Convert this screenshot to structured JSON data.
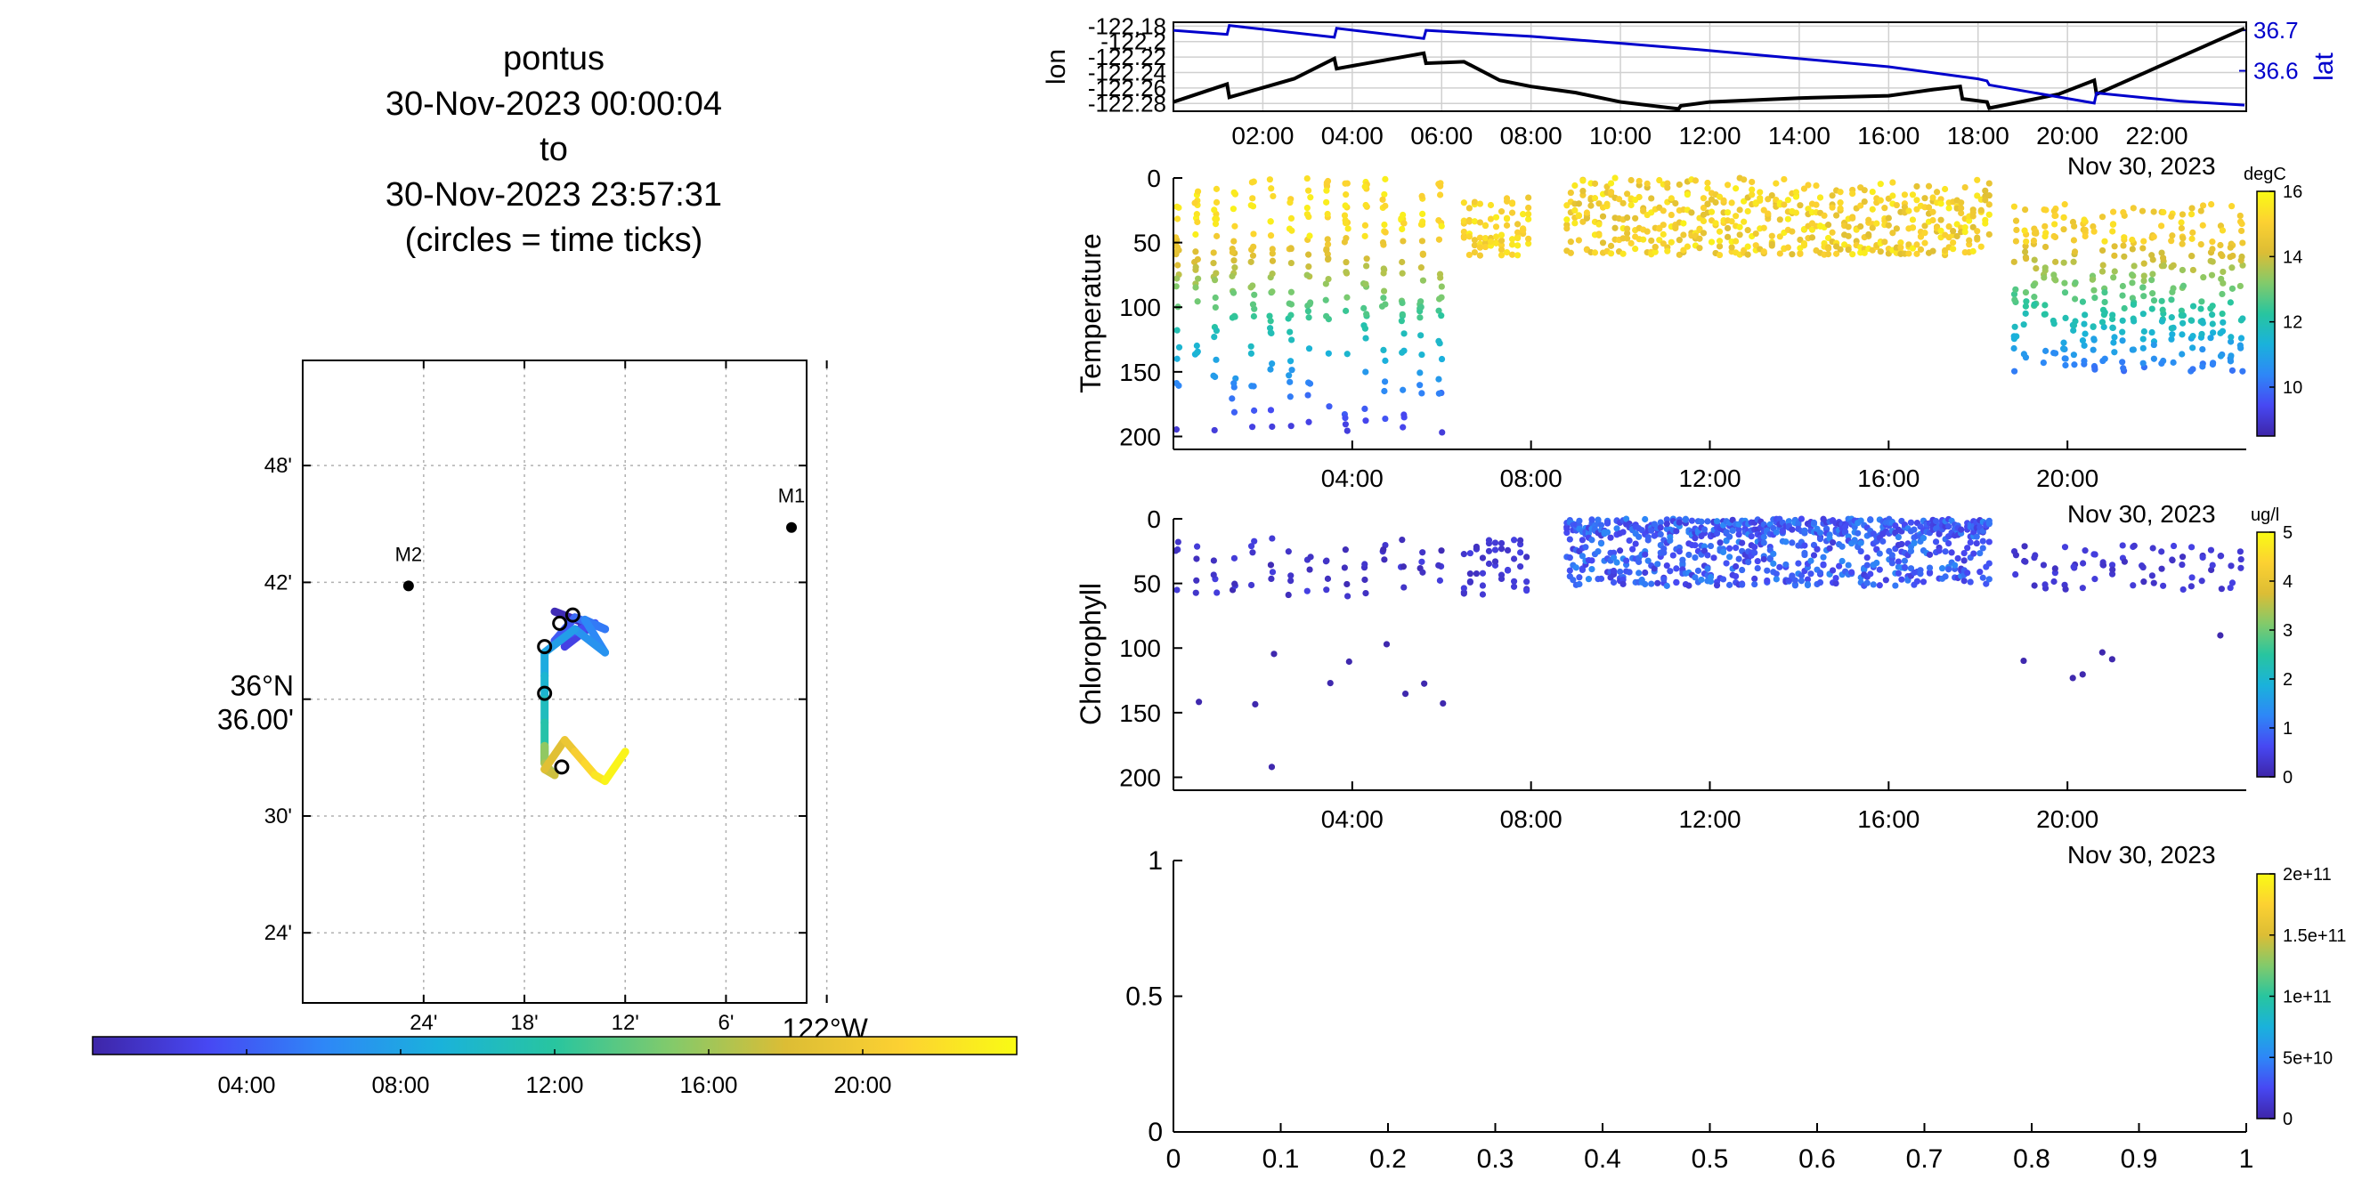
{
  "title": {
    "lines": [
      "pontus",
      "30-Nov-2023 00:00:04",
      "to",
      "30-Nov-2023 23:57:31",
      "(circles = time ticks)"
    ]
  },
  "map": {
    "lat_ticks": [
      "48'",
      "42'",
      "36°N 36.00'",
      "30'",
      "24'"
    ],
    "lat_tick_values": [
      36.8,
      36.7,
      36.6,
      36.5,
      36.4
    ],
    "lon_ticks": [
      "24'",
      "18'",
      "12'",
      "6'",
      "122°W"
    ],
    "lon_tick_values": [
      -122.4,
      -122.3,
      -122.2,
      -122.1,
      -122.0
    ],
    "lat_range": [
      36.34,
      36.89
    ],
    "lon_range": [
      -122.52,
      -122.02
    ],
    "stations": [
      {
        "label": "M1",
        "lon": -122.035,
        "lat": 36.747
      },
      {
        "label": "M2",
        "lon": -122.415,
        "lat": 36.697
      }
    ],
    "track": {
      "time_h": [
        0.0,
        1.0,
        2.0,
        2.8,
        3.5,
        4.2,
        5.0,
        5.8,
        6.5,
        7.2,
        8.0,
        9.0,
        10.0,
        11.0,
        12.0,
        13.0,
        14.0,
        15.0,
        16.0,
        17.0,
        18.0,
        19.0,
        20.0,
        21.0,
        22.0,
        23.0,
        23.96
      ],
      "lon": [
        -122.27,
        -122.24,
        -122.26,
        -122.23,
        -122.27,
        -122.25,
        -122.22,
        -122.24,
        -122.22,
        -122.25,
        -122.28,
        -122.28,
        -122.28,
        -122.28,
        -122.28,
        -122.28,
        -122.28,
        -122.28,
        -122.28,
        -122.27,
        -122.28,
        -122.26,
        -122.25,
        -122.24,
        -122.23,
        -122.22,
        -122.2
      ],
      "lat": [
        36.675,
        36.665,
        36.645,
        36.665,
        36.65,
        36.67,
        36.66,
        36.668,
        36.64,
        36.66,
        36.64,
        36.62,
        36.6,
        36.58,
        36.555,
        36.55,
        36.545,
        36.56,
        36.545,
        36.535,
        36.54,
        36.565,
        36.555,
        36.545,
        36.535,
        36.53,
        36.555
      ]
    },
    "time_circles": [
      {
        "lon": -122.265,
        "lat": 36.665
      },
      {
        "lon": -122.252,
        "lat": 36.672
      },
      {
        "lon": -122.28,
        "lat": 36.645
      },
      {
        "lon": -122.28,
        "lat": 36.605
      },
      {
        "lon": -122.263,
        "lat": 36.542
      }
    ]
  },
  "time_colorbar": {
    "ticks": [
      "04:00",
      "08:00",
      "12:00",
      "16:00",
      "20:00"
    ],
    "tick_hours": [
      4,
      8,
      12,
      16,
      20
    ],
    "range_h": [
      0,
      24
    ],
    "colors": [
      "#3e26a8",
      "#4748f3",
      "#2e87f7",
      "#1ab2db",
      "#28c59f",
      "#82ca6b",
      "#dcbd35",
      "#fcd132",
      "#f9fb14"
    ]
  },
  "lonlat": {
    "ylabel_left": "lon",
    "ylabel_right": "lat",
    "lon_ticks": [
      "-122.18",
      "-122.2",
      "-122.22",
      "-122.24",
      "-122.26",
      "-122.28"
    ],
    "lon_tick_values": [
      -122.18,
      -122.2,
      -122.22,
      -122.24,
      -122.26,
      -122.28
    ],
    "lon_range": [
      -122.29,
      -122.175
    ],
    "lat_ticks": [
      "36.7",
      "36.6"
    ],
    "lat_tick_values": [
      36.7,
      36.6
    ],
    "lat_range": [
      36.5,
      36.72
    ],
    "x_ticks": [
      "02:00",
      "04:00",
      "06:00",
      "08:00",
      "10:00",
      "12:00",
      "14:00",
      "16:00",
      "18:00",
      "20:00",
      "22:00"
    ],
    "x_tick_hours": [
      2,
      4,
      6,
      8,
      10,
      12,
      14,
      16,
      18,
      20,
      22
    ],
    "date_label": "Nov 30, 2023",
    "lon_color": "#000000",
    "lat_color": "#0000cc",
    "lon_series": {
      "t": [
        0.0,
        1.2,
        1.25,
        2.7,
        3.6,
        3.65,
        5.6,
        5.65,
        6.5,
        7.3,
        8.0,
        9.0,
        10.0,
        11.3,
        11.35,
        12.0,
        14.0,
        16.0,
        17.0,
        17.6,
        17.65,
        18.2,
        18.25,
        19.8,
        20.6,
        20.65,
        23.96
      ],
      "v": [
        -122.278,
        -122.255,
        -122.272,
        -122.248,
        -122.222,
        -122.235,
        -122.215,
        -122.228,
        -122.226,
        -122.25,
        -122.258,
        -122.266,
        -122.278,
        -122.287,
        -122.283,
        -122.278,
        -122.273,
        -122.27,
        -122.262,
        -122.258,
        -122.274,
        -122.278,
        -122.286,
        -122.268,
        -122.25,
        -122.268,
        -122.183
      ]
    },
    "lat_series": {
      "t": [
        0.0,
        1.2,
        1.25,
        3.6,
        3.65,
        5.6,
        5.65,
        8.0,
        10.0,
        12.0,
        14.0,
        16.0,
        18.0,
        18.2,
        18.25,
        20.6,
        20.65,
        22.5,
        23.96
      ],
      "v": [
        36.7,
        36.69,
        36.712,
        36.683,
        36.705,
        36.68,
        36.7,
        36.685,
        36.668,
        36.65,
        36.63,
        36.61,
        36.58,
        36.575,
        36.565,
        36.52,
        36.545,
        36.525,
        36.515
      ]
    }
  },
  "temperature": {
    "ylabel": "Temperature",
    "y_ticks": [
      "0",
      "50",
      "100",
      "150",
      "200"
    ],
    "y_tick_values": [
      0,
      50,
      100,
      150,
      200
    ],
    "y_range": [
      0,
      210
    ],
    "x_ticks": [
      "04:00",
      "08:00",
      "12:00",
      "16:00",
      "20:00"
    ],
    "x_tick_hours": [
      4,
      8,
      12,
      16,
      20
    ],
    "date_label": "Nov 30, 2023",
    "colorbar_unit": "degC",
    "colorbar_ticks": [
      "16",
      "14",
      "12",
      "10"
    ],
    "colorbar_tick_values": [
      16,
      14,
      12,
      10
    ],
    "clim": [
      8.5,
      16
    ]
  },
  "chlorophyll": {
    "ylabel": "Chlorophyll",
    "y_ticks": [
      "0",
      "50",
      "100",
      "150",
      "200"
    ],
    "y_tick_values": [
      0,
      50,
      100,
      150,
      200
    ],
    "y_range": [
      0,
      210
    ],
    "x_ticks": [
      "04:00",
      "08:00",
      "12:00",
      "16:00",
      "20:00"
    ],
    "x_tick_hours": [
      4,
      8,
      12,
      16,
      20
    ],
    "date_label": "Nov 30, 2023",
    "colorbar_unit": "ug/l",
    "colorbar_ticks": [
      "5",
      "4",
      "3",
      "2",
      "1",
      "0"
    ],
    "colorbar_tick_values": [
      5,
      4,
      3,
      2,
      1,
      0
    ],
    "clim": [
      0,
      5
    ]
  },
  "empty_plot": {
    "y_ticks": [
      "0",
      "0.5",
      "1"
    ],
    "y_tick_values": [
      0,
      0.5,
      1
    ],
    "x_ticks": [
      "0",
      "0.1",
      "0.2",
      "0.3",
      "0.4",
      "0.5",
      "0.6",
      "0.7",
      "0.8",
      "0.9",
      "1"
    ],
    "x_tick_values": [
      0,
      0.1,
      0.2,
      0.3,
      0.4,
      0.5,
      0.6,
      0.7,
      0.8,
      0.9,
      1
    ],
    "colorbar_ticks": [
      "2e+11",
      "1.5e+11",
      "1e+11",
      "5e+10",
      "0"
    ],
    "colorbar_tick_values": [
      200000000000.0,
      150000000000.0,
      100000000000.0,
      50000000000.0,
      0
    ],
    "clim": [
      0,
      200000000000.0
    ]
  },
  "chart_data": [
    {
      "type": "line",
      "title": "",
      "xlabel": "",
      "ylabel": "lon",
      "y2label": "lat",
      "x_unit": "hours since 30-Nov-2023 00:00",
      "series": [
        {
          "name": "lon",
          "ref": "lonlat.lon_series"
        },
        {
          "name": "lat",
          "ref": "lonlat.lat_series"
        }
      ]
    },
    {
      "type": "scatter",
      "ylabel": "Temperature",
      "note": "profile scatter of depth vs time colored by degC",
      "ylim": [
        0,
        210
      ]
    },
    {
      "type": "scatter",
      "ylabel": "Chlorophyll",
      "note": "profile scatter of depth vs time colored by ug/l",
      "ylim": [
        0,
        210
      ]
    },
    {
      "type": "scatter",
      "xlim": [
        0,
        1
      ],
      "ylim": [
        0,
        1
      ],
      "series": []
    }
  ]
}
